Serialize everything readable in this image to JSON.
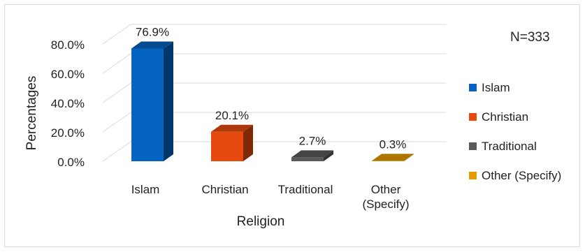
{
  "chart_data": {
    "type": "bar",
    "categories": [
      "Islam",
      "Christian",
      "Traditional",
      "Other (Specify)"
    ],
    "category_labels": [
      [
        "Islam"
      ],
      [
        "Christian"
      ],
      [
        "Traditional"
      ],
      [
        "Other",
        "(Specify)"
      ]
    ],
    "values": [
      76.9,
      20.1,
      2.7,
      0.3
    ],
    "data_labels": [
      "76.9%",
      "20.1%",
      "2.7%",
      "0.3%"
    ],
    "colors": [
      "#0563c1",
      "#e64a0e",
      "#5a5a5a",
      "#e59b00"
    ],
    "title": "",
    "xlabel": "Religion",
    "ylabel": "Percentages",
    "ylim": [
      0,
      80
    ],
    "yticks": [
      "0.0%",
      "20.0%",
      "40.0%",
      "60.0%",
      "80.0%"
    ],
    "annotation": "N=333",
    "grid": true,
    "legend_position": "right",
    "style": "3d-column"
  }
}
